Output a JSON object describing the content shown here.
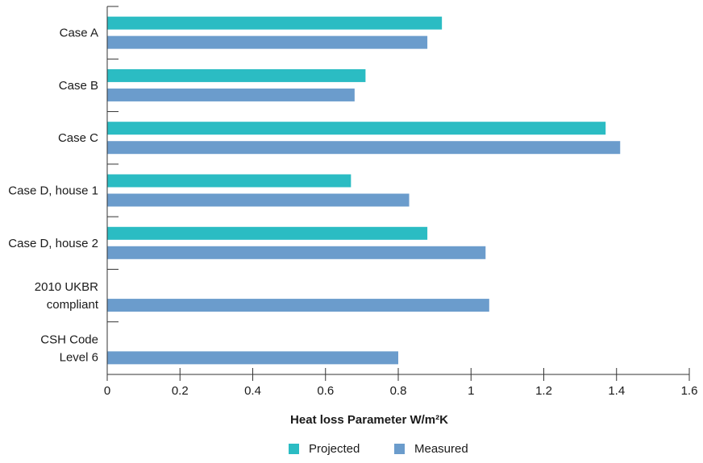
{
  "chart_data": {
    "type": "bar",
    "orientation": "horizontal",
    "categories": [
      [
        "Case A"
      ],
      [
        "Case B"
      ],
      [
        "Case C"
      ],
      [
        "Case D, house 1"
      ],
      [
        "Case D, house 2"
      ],
      [
        "2010 UKBR",
        "compliant"
      ],
      [
        "CSH Code",
        "Level 6"
      ]
    ],
    "series": [
      {
        "name": "Projected",
        "color": "#2bbcc3",
        "values": [
          0.92,
          0.71,
          1.37,
          0.67,
          0.88,
          null,
          null
        ]
      },
      {
        "name": "Measured",
        "color": "#6b9ccc",
        "values": [
          0.88,
          0.68,
          1.41,
          0.83,
          1.04,
          1.05,
          0.8
        ]
      }
    ],
    "xlabel": "Heat loss Parameter W/m²K",
    "xlim": [
      0,
      1.6
    ],
    "xticks": [
      "0",
      "0.2",
      "0.4",
      "0.6",
      "0.8",
      "1",
      "1.2",
      "1.4",
      "1.6"
    ],
    "grid": false,
    "legend_position": "bottom"
  }
}
